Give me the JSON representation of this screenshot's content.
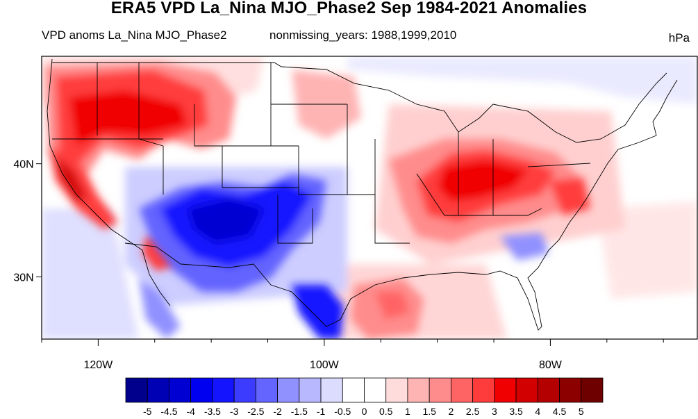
{
  "title": "ERA5 VPD La_Nina MJO_Phase2 Sep 1984-2021 Anomalies",
  "subtitle_left": "VPD anoms La_Nina MJO_Phase2",
  "subtitle_right": "nonmissing_years: 1988,1999,2010",
  "units": "hPa",
  "map": {
    "projection": "cylindrical equidistant",
    "lon_range": [
      -125,
      -67
    ],
    "lat_range": [
      24.5,
      49.5
    ],
    "lat_ticks": [
      {
        "lat": 40,
        "label": "40N"
      },
      {
        "lat": 30,
        "label": "30N"
      }
    ],
    "lon_ticks": [
      {
        "lon": -120,
        "label": "120W"
      },
      {
        "lon": -100,
        "label": "100W"
      },
      {
        "lon": -80,
        "label": "80W"
      }
    ],
    "minor_lon_ticks": [
      -125,
      -115,
      -110,
      -105,
      -95,
      -90,
      -85,
      -75,
      -70
    ]
  },
  "anomaly_regions": [
    {
      "name": "northwest-pacific-northwest",
      "sign": "positive",
      "level": 3.0
    },
    {
      "name": "california",
      "sign": "positive",
      "level": 3.5
    },
    {
      "name": "northern-rockies",
      "sign": "positive",
      "level": 2.5
    },
    {
      "name": "four-corners-southern-plains",
      "sign": "negative",
      "level": -4.5
    },
    {
      "name": "south-texas",
      "sign": "negative",
      "level": -3.5
    },
    {
      "name": "southern-arizona",
      "sign": "positive",
      "level": 3.0
    },
    {
      "name": "ohio-tennessee-valley",
      "sign": "positive",
      "level": 3.5
    },
    {
      "name": "mid-atlantic",
      "sign": "positive",
      "level": 2.5
    },
    {
      "name": "gulf-of-mexico",
      "sign": "positive",
      "level": 1.5
    },
    {
      "name": "southeast-georgia",
      "sign": "negative",
      "level": -1.5
    }
  ],
  "colorbar": {
    "labels": [
      "-5",
      "-4.5",
      "-4",
      "-3.5",
      "-3",
      "-2.5",
      "-2",
      "-1.5",
      "-1",
      "-0.5",
      "0",
      "0.5",
      "1",
      "1.5",
      "2",
      "2.5",
      "3",
      "3.5",
      "4",
      "4.5",
      "5"
    ],
    "colors": [
      "#00008c",
      "#0000b4",
      "#0000d2",
      "#0000f0",
      "#1414ff",
      "#3c3cff",
      "#6464ff",
      "#9090ff",
      "#b8b8ff",
      "#dcdcff",
      "#ffffff",
      "#ffffff",
      "#ffdcdc",
      "#ffb4b4",
      "#ff8c8c",
      "#ff6464",
      "#ff3c3c",
      "#f00000",
      "#d20000",
      "#b40000",
      "#8c0000",
      "#6e0000"
    ]
  }
}
